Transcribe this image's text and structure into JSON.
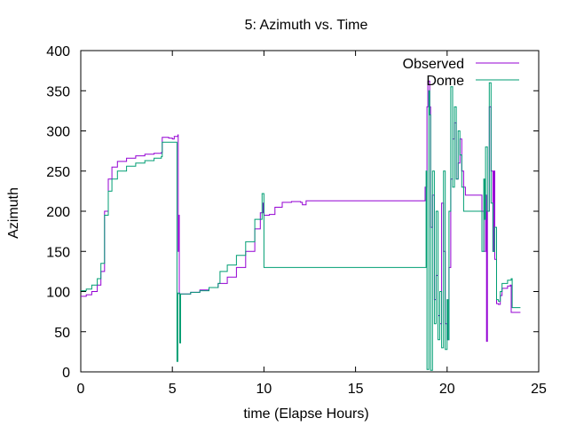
{
  "chart_data": {
    "type": "line",
    "title": "5: Azimuth vs. Time",
    "xlabel": "time (Elapse Hours)",
    "ylabel": "Azimuth",
    "xlim": [
      0,
      25
    ],
    "ylim": [
      0,
      400
    ],
    "xticks": [
      0,
      5,
      10,
      15,
      20,
      25
    ],
    "yticks": [
      0,
      50,
      100,
      150,
      200,
      250,
      300,
      350,
      400
    ],
    "grid": false,
    "legend_position": "top-right",
    "series": [
      {
        "name": "Observed",
        "color": "#9400d3",
        "points": [
          [
            0,
            94
          ],
          [
            0.3,
            96
          ],
          [
            0.6,
            100
          ],
          [
            0.9,
            108
          ],
          [
            1.1,
            125
          ],
          [
            1.3,
            200
          ],
          [
            1.5,
            240
          ],
          [
            1.7,
            255
          ],
          [
            2.0,
            262
          ],
          [
            2.5,
            266
          ],
          [
            3.0,
            269
          ],
          [
            3.5,
            271
          ],
          [
            4.0,
            272
          ],
          [
            4.4,
            273
          ],
          [
            4.45,
            292
          ],
          [
            4.8,
            291
          ],
          [
            5.0,
            290
          ],
          [
            5.1,
            293
          ],
          [
            5.3,
            295
          ],
          [
            5.32,
            150
          ],
          [
            5.35,
            195
          ],
          [
            5.38,
            97
          ],
          [
            6.0,
            99
          ],
          [
            6.5,
            102
          ],
          [
            7.0,
            105
          ],
          [
            7.5,
            110
          ],
          [
            8.0,
            118
          ],
          [
            8.5,
            130
          ],
          [
            9.0,
            150
          ],
          [
            9.5,
            178
          ],
          [
            9.8,
            198
          ],
          [
            9.95,
            210
          ],
          [
            10.0,
            195
          ],
          [
            10.3,
            196
          ],
          [
            10.6,
            205
          ],
          [
            11.0,
            211
          ],
          [
            11.5,
            212
          ],
          [
            12.0,
            211
          ],
          [
            12.1,
            208
          ],
          [
            12.3,
            213
          ],
          [
            13.0,
            213
          ],
          [
            16.0,
            213
          ],
          [
            18.7,
            213
          ],
          [
            18.8,
            230
          ],
          [
            18.9,
            330
          ],
          [
            18.95,
            362
          ],
          [
            19.05,
            330
          ],
          [
            19.1,
            180
          ],
          [
            19.2,
            220
          ],
          [
            19.3,
            90
          ],
          [
            19.4,
            120
          ],
          [
            19.5,
            70
          ],
          [
            19.6,
            60
          ],
          [
            19.7,
            210
          ],
          [
            19.8,
            150
          ],
          [
            19.9,
            60
          ],
          [
            20.0,
            40
          ],
          [
            20.1,
            130
          ],
          [
            20.2,
            240
          ],
          [
            20.3,
            290
          ],
          [
            20.4,
            310
          ],
          [
            20.5,
            240
          ],
          [
            20.6,
            260
          ],
          [
            20.7,
            290
          ],
          [
            20.8,
            250
          ],
          [
            20.9,
            230
          ],
          [
            21.0,
            220
          ],
          [
            21.5,
            220
          ],
          [
            21.8,
            220
          ],
          [
            21.9,
            200
          ],
          [
            22.0,
            150
          ],
          [
            22.1,
            220
          ],
          [
            22.15,
            38
          ],
          [
            22.2,
            200
          ],
          [
            22.3,
            330
          ],
          [
            22.4,
            250
          ],
          [
            22.5,
            150
          ],
          [
            22.55,
            250
          ],
          [
            22.6,
            140
          ],
          [
            22.7,
            85
          ],
          [
            22.8,
            84
          ],
          [
            22.9,
            95
          ],
          [
            23.0,
            104
          ],
          [
            23.3,
            107
          ],
          [
            23.45,
            108
          ],
          [
            23.5,
            74
          ],
          [
            24.0,
            74
          ]
        ]
      },
      {
        "name": "Dome",
        "color": "#009e73",
        "points": [
          [
            0,
            101
          ],
          [
            0.3,
            103
          ],
          [
            0.6,
            108
          ],
          [
            0.9,
            116
          ],
          [
            1.1,
            135
          ],
          [
            1.3,
            195
          ],
          [
            1.5,
            225
          ],
          [
            1.7,
            240
          ],
          [
            2.0,
            250
          ],
          [
            2.5,
            256
          ],
          [
            3.0,
            260
          ],
          [
            3.5,
            263
          ],
          [
            4.0,
            266
          ],
          [
            4.4,
            268
          ],
          [
            4.45,
            286
          ],
          [
            5.2,
            286
          ],
          [
            5.25,
            13
          ],
          [
            5.3,
            98
          ],
          [
            5.4,
            36
          ],
          [
            5.45,
            97
          ],
          [
            6.0,
            99
          ],
          [
            6.5,
            101
          ],
          [
            7.0,
            105
          ],
          [
            7.5,
            110
          ],
          [
            7.6,
            125
          ],
          [
            8.0,
            133
          ],
          [
            8.5,
            145
          ],
          [
            9.0,
            162
          ],
          [
            9.5,
            190
          ],
          [
            9.9,
            222
          ],
          [
            10.0,
            130
          ],
          [
            12.0,
            130
          ],
          [
            15.0,
            130
          ],
          [
            18.8,
            130
          ],
          [
            18.85,
            250
          ],
          [
            18.9,
            3
          ],
          [
            19.0,
            350
          ],
          [
            19.05,
            320
          ],
          [
            19.1,
            2
          ],
          [
            19.2,
            250
          ],
          [
            19.3,
            60
          ],
          [
            19.4,
            200
          ],
          [
            19.5,
            40
          ],
          [
            19.6,
            100
          ],
          [
            19.7,
            30
          ],
          [
            19.8,
            250
          ],
          [
            19.9,
            28
          ],
          [
            20.0,
            90
          ],
          [
            20.05,
            40
          ],
          [
            20.1,
            200
          ],
          [
            20.2,
            355
          ],
          [
            20.3,
            230
          ],
          [
            20.4,
            330
          ],
          [
            20.5,
            240
          ],
          [
            20.6,
            300
          ],
          [
            20.7,
            270
          ],
          [
            20.8,
            230
          ],
          [
            20.9,
            200
          ],
          [
            21.0,
            200
          ],
          [
            21.5,
            200
          ],
          [
            21.8,
            200
          ],
          [
            21.9,
            150
          ],
          [
            22.0,
            240
          ],
          [
            22.05,
            190
          ],
          [
            22.1,
            280
          ],
          [
            22.2,
            200
          ],
          [
            22.3,
            360
          ],
          [
            22.4,
            210
          ],
          [
            22.5,
            150
          ],
          [
            22.6,
            180
          ],
          [
            22.7,
            90
          ],
          [
            22.8,
            88
          ],
          [
            22.9,
            100
          ],
          [
            23.0,
            110
          ],
          [
            23.3,
            114
          ],
          [
            23.5,
            116
          ],
          [
            23.55,
            80
          ],
          [
            24.0,
            80
          ]
        ]
      }
    ]
  }
}
